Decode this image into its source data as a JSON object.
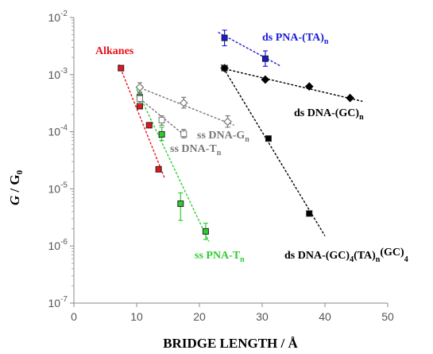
{
  "chart_data": {
    "type": "scatter",
    "xlabel": "BRIDGE LENGTH / Å",
    "ylabel_italic": "G",
    "ylabel_rest": " / G",
    "ylabel_sub": "0",
    "xlim": [
      0,
      50
    ],
    "ylim_log10": [
      -7,
      -2
    ],
    "x_ticks": [
      "0",
      "10",
      "20",
      "30",
      "40",
      "50"
    ],
    "y_ticks": [
      {
        "base": "10",
        "exp": "-7"
      },
      {
        "base": "10",
        "exp": "-6"
      },
      {
        "base": "10",
        "exp": "-5"
      },
      {
        "base": "10",
        "exp": "-4"
      },
      {
        "base": "10",
        "exp": "-3"
      },
      {
        "base": "10",
        "exp": "-2"
      }
    ],
    "grid": false,
    "series": [
      {
        "label_main": "Alkanes",
        "label_sub": "",
        "label_tail": "",
        "color": "#e8141c",
        "marker": "square",
        "fill": "#e8141c",
        "points": [
          {
            "x": 7.5,
            "y": 0.0013
          },
          {
            "x": 10.5,
            "y": 0.00028
          },
          {
            "x": 12.0,
            "y": 0.00013
          },
          {
            "x": 13.5,
            "y": 2.2e-05
          }
        ],
        "fit": [
          [
            7.2,
            0.0015
          ],
          [
            14.5,
            1.5e-05
          ]
        ]
      },
      {
        "label_main": "ss PNA-T",
        "label_sub": "n",
        "label_tail": "",
        "color": "#2fcc2f",
        "marker": "square",
        "fill": "#2fcc2f",
        "points": [
          {
            "x": 10.5,
            "y": 0.0004,
            "ylo": 0.00032,
            "yhi": 0.0005
          },
          {
            "x": 14.0,
            "y": 9e-05,
            "ylo": 7e-05,
            "yhi": 0.00012
          },
          {
            "x": 17.0,
            "y": 5.5e-06,
            "ylo": 2.8e-06,
            "yhi": 8.5e-06
          },
          {
            "x": 21.0,
            "y": 1.8e-06,
            "ylo": 1.3e-06,
            "yhi": 2.5e-06
          }
        ],
        "fit": [
          [
            10.0,
            0.00055
          ],
          [
            21.5,
            1.2e-06
          ]
        ]
      },
      {
        "label_main": "ss DNA-G",
        "label_sub": "n",
        "label_tail": "",
        "color": "#777777",
        "marker": "diamond-open",
        "fill": "#ffffff",
        "points": [
          {
            "x": 10.5,
            "y": 0.0006,
            "ylo": 0.00048,
            "yhi": 0.00072
          },
          {
            "x": 17.5,
            "y": 0.00032,
            "ylo": 0.00026,
            "yhi": 0.0004
          },
          {
            "x": 24.5,
            "y": 0.00015,
            "ylo": 0.00012,
            "yhi": 0.00019
          }
        ],
        "fit": [
          [
            10.0,
            0.00062
          ],
          [
            25.5,
            0.00013
          ]
        ]
      },
      {
        "label_main": "ss DNA-T",
        "label_sub": "n",
        "label_tail": "",
        "color": "#777777",
        "marker": "square-open",
        "fill": "#ffffff",
        "points": [
          {
            "x": 10.5,
            "y": 0.00038,
            "ylo": 0.00031,
            "yhi": 0.00046
          },
          {
            "x": 14.0,
            "y": 0.00016,
            "ylo": 0.00013,
            "yhi": 0.00019
          },
          {
            "x": 17.5,
            "y": 9.2e-05,
            "ylo": 7.8e-05,
            "yhi": 0.00011
          }
        ],
        "fit": [
          [
            10.0,
            0.00042
          ],
          [
            18.0,
            8e-05
          ]
        ]
      },
      {
        "label_main": "ds PNA-(TA)",
        "label_sub": "n",
        "label_tail": "",
        "color": "#1a1ad6",
        "marker": "square",
        "fill": "#1a1ad6",
        "points": [
          {
            "x": 24.0,
            "y": 0.0044,
            "ylo": 0.0032,
            "yhi": 0.006
          },
          {
            "x": 30.5,
            "y": 0.0019,
            "ylo": 0.0014,
            "yhi": 0.0026
          }
        ],
        "fit": [
          [
            23.0,
            0.0055
          ],
          [
            33.0,
            0.0014
          ]
        ]
      },
      {
        "label_main": "ds DNA-(GC)",
        "label_sub": "n",
        "label_tail": "",
        "color": "#000000",
        "marker": "diamond",
        "fill": "#000000",
        "points": [
          {
            "x": 24.0,
            "y": 0.0013
          },
          {
            "x": 30.5,
            "y": 0.00082
          },
          {
            "x": 37.5,
            "y": 0.00062
          },
          {
            "x": 44.0,
            "y": 0.00039
          }
        ],
        "fit": [
          [
            23.5,
            0.0013
          ],
          [
            46.0,
            0.00034
          ]
        ]
      },
      {
        "label_main": "ds DNA-(GC)",
        "label_sub": "4",
        "label_tail": "(TA)n(GC)4",
        "color": "#000000",
        "marker": "square",
        "fill": "#000000",
        "points": [
          {
            "x": 24.0,
            "y": 0.0013
          },
          {
            "x": 31.0,
            "y": 7.6e-05
          },
          {
            "x": 37.5,
            "y": 3.7e-06
          }
        ],
        "fit": [
          [
            23.5,
            0.0015
          ],
          [
            40.0,
            1.5e-06
          ]
        ]
      }
    ]
  }
}
